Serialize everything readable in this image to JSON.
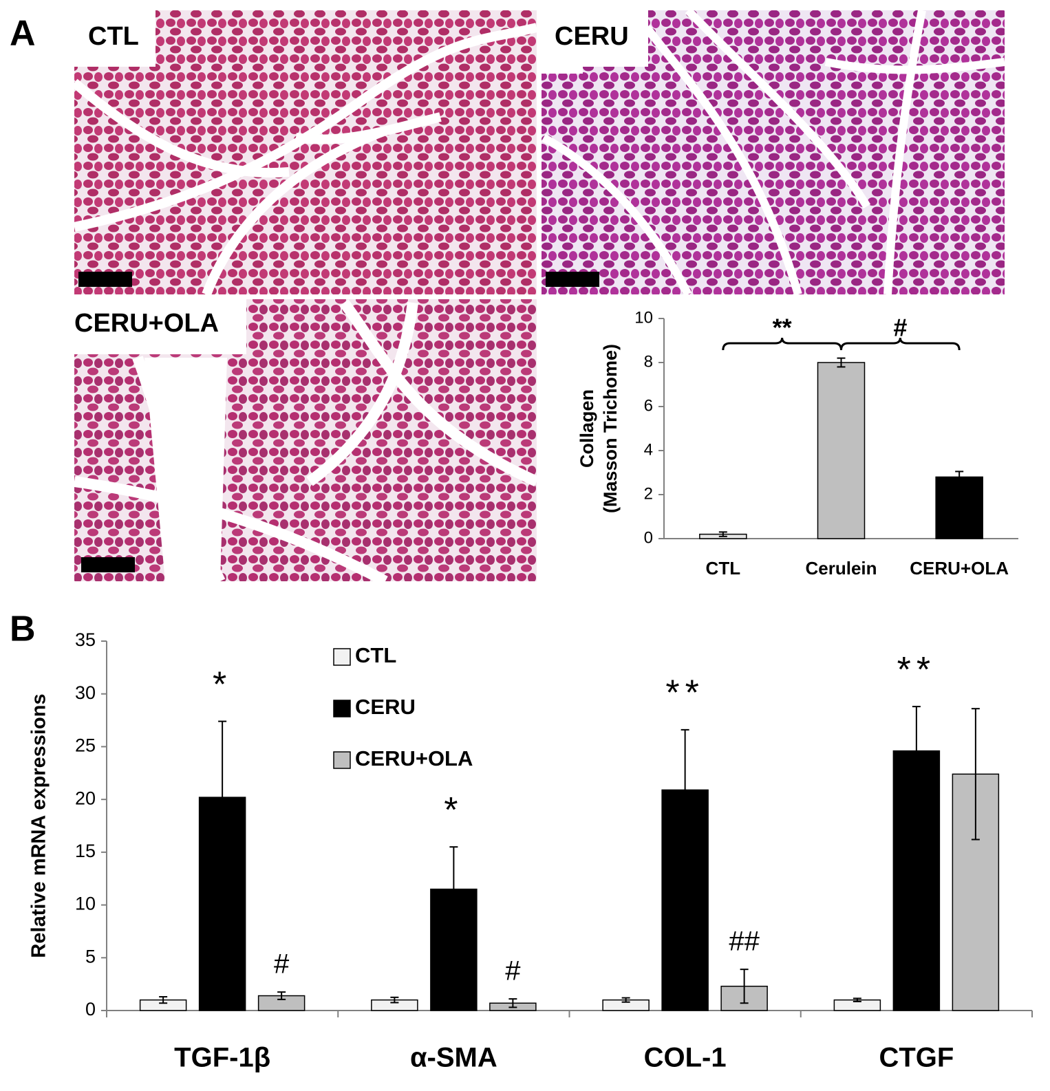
{
  "panels": [
    "A",
    "B"
  ],
  "image_labels": [
    "CTL",
    "CERU",
    "CERU+OLA"
  ],
  "chart_data": [
    {
      "type": "bar",
      "ylabel": [
        "Collagen",
        "(Masson Trichome)"
      ],
      "categories": [
        "CTL",
        "Cerulein",
        "CERU+OLA"
      ],
      "values": [
        0.2,
        8.0,
        2.8
      ],
      "errors": [
        0.1,
        0.2,
        0.25
      ],
      "colors": [
        "#e6e6e6",
        "#bfbfbf",
        "#000000"
      ],
      "ylim": [
        0,
        10
      ],
      "yticks": [
        0,
        2,
        4,
        6,
        8,
        10
      ],
      "significance": [
        {
          "text": "**",
          "from": 0,
          "to": 1
        },
        {
          "text": "#",
          "from": 1,
          "to": 2
        }
      ]
    },
    {
      "type": "grouped_bar",
      "ylabel": "Relative mRNA expressions",
      "categories": [
        "TGF-1β",
        "α-SMA",
        "COL-1",
        "CTGF"
      ],
      "series": [
        {
          "name": "CTL",
          "color": "#f2f2f2",
          "values": [
            1,
            1,
            1,
            1
          ],
          "errors": [
            0.3,
            0.25,
            0.2,
            0.15
          ],
          "significance": [
            null,
            null,
            null,
            null
          ]
        },
        {
          "name": "CERU",
          "color": "#000000",
          "values": [
            20.2,
            11.5,
            20.9,
            24.6
          ],
          "errors": [
            7.2,
            4.0,
            5.7,
            4.2
          ],
          "significance": [
            "*",
            "*",
            "**",
            "**"
          ]
        },
        {
          "name": "CERU+OLA",
          "color": "#bfbfbf",
          "values": [
            1.4,
            0.7,
            2.3,
            22.4
          ],
          "errors": [
            0.35,
            0.4,
            1.6,
            6.2
          ],
          "significance": [
            "#",
            "#",
            "##",
            null
          ]
        }
      ],
      "ylim": [
        0,
        35
      ],
      "yticks": [
        0,
        5,
        10,
        15,
        20,
        25,
        30,
        35
      ]
    }
  ]
}
